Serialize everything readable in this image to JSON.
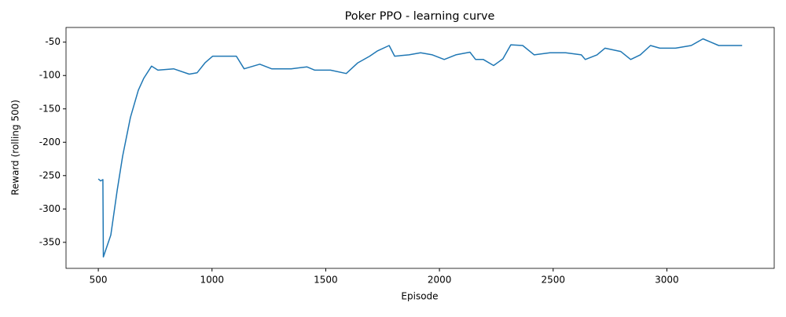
{
  "chart_data": {
    "type": "line",
    "title": "Poker PPO - learning curve",
    "x_label": "Episode",
    "y_label": "Reward (rolling 500)",
    "x": [
      500,
      510,
      520,
      522,
      555,
      583,
      607,
      641,
      676,
      700,
      734,
      762,
      831,
      900,
      934,
      969,
      1003,
      1107,
      1141,
      1210,
      1262,
      1348,
      1417,
      1452,
      1521,
      1590,
      1641,
      1693,
      1728,
      1779,
      1803,
      1866,
      1917,
      1969,
      2021,
      2072,
      2134,
      2159,
      2193,
      2238,
      2279,
      2314,
      2366,
      2417,
      2486,
      2555,
      2624,
      2641,
      2693,
      2728,
      2797,
      2841,
      2883,
      2928,
      2969,
      3038,
      3107,
      3159,
      3193,
      3228,
      3331
    ],
    "series": [
      {
        "name": "reward",
        "color": "#1f77b4",
        "values": [
          -255,
          -258,
          -256,
          -372,
          -339,
          -272,
          -221,
          -163,
          -122,
          -104,
          -86,
          -92,
          -90,
          -98,
          -96,
          -81,
          -71,
          -71,
          -90,
          -83,
          -90,
          -90,
          -87,
          -92,
          -92,
          -97,
          -81,
          -71,
          -63,
          -55,
          -71,
          -69,
          -66,
          -69,
          -76,
          -69,
          -65,
          -76,
          -76,
          -85,
          -75,
          -54,
          -55,
          -69,
          -66,
          -66,
          -69,
          -76,
          -69,
          -59,
          -64,
          -76,
          -69,
          -55,
          -59,
          -59,
          -55,
          -45,
          -50,
          -55,
          -55
        ]
      }
    ],
    "xlim": [
      358,
      3472
    ],
    "ylim": [
      -389,
      -28
    ],
    "xticks": [
      500,
      1000,
      1500,
      2000,
      2500,
      3000
    ],
    "yticks": [
      -50,
      -100,
      -150,
      -200,
      -250,
      -300,
      -350
    ]
  }
}
